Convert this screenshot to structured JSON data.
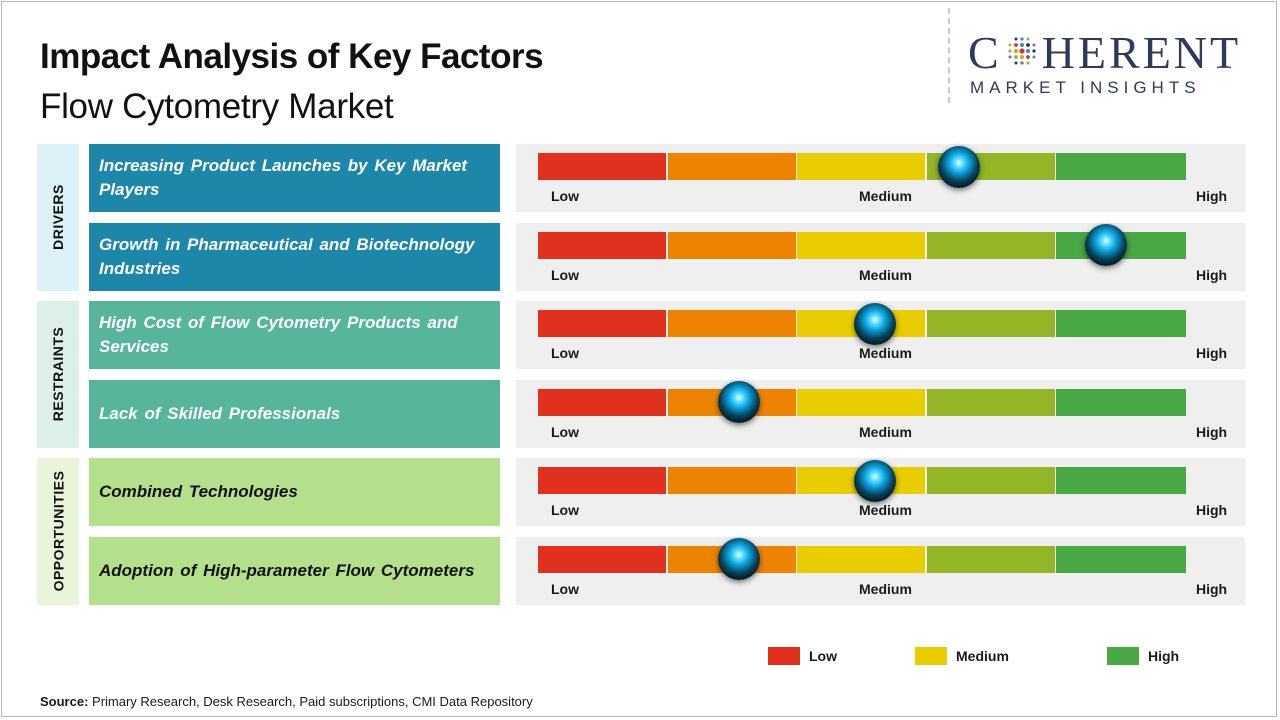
{
  "title": "Impact Analysis of Key Factors",
  "subtitle": "Flow Cytometry Market",
  "logo": {
    "word_left": "C",
    "word_right": "HERENT",
    "tagline": "MARKET INSIGHTS"
  },
  "colors": {
    "low": "#e0301e",
    "low_medium": "#ee8300",
    "medium": "#e9cd00",
    "medium_high": "#93b526",
    "high": "#48a843",
    "drivers": "#1d87a9",
    "restraints": "#56b59a",
    "opportunities": "#b4e08c",
    "drivers_label_bg": "#dcf1f8",
    "restraints_label_bg": "#dcefe9",
    "opportunities_label_bg": "#e8f5db"
  },
  "scale_labels": {
    "low": "Low",
    "medium": "Medium",
    "high": "High"
  },
  "chart_data": {
    "type": "gauge-bars",
    "title": "Impact Analysis of Key Factors",
    "subtitle": "Flow Cytometry Market",
    "scale": [
      "Low",
      "Medium",
      "High"
    ],
    "scale_range": [
      0,
      1
    ],
    "groups": [
      {
        "name": "DRIVERS",
        "factors": [
          {
            "label": "Increasing Product Launches by Key Market Players",
            "impact": 0.65
          },
          {
            "label": "Growth in Pharmaceutical and Biotechnology Industries",
            "impact": 0.877
          }
        ]
      },
      {
        "name": "RESTRAINTS",
        "factors": [
          {
            "label": "High Cost of Flow Cytometry Products and Services",
            "impact": 0.52
          },
          {
            "label": "Lack of Skilled Professionals",
            "impact": 0.31
          }
        ]
      },
      {
        "name": "OPPORTUNITIES",
        "factors": [
          {
            "label": "Combined Technologies",
            "impact": 0.52
          },
          {
            "label": "Adoption of High-parameter Flow Cytometers",
            "impact": 0.31
          }
        ]
      }
    ]
  },
  "legend": [
    {
      "label": "Low",
      "color": "#e0301e"
    },
    {
      "label": "Medium",
      "color": "#e9cd00"
    },
    {
      "label": "High",
      "color": "#48a843"
    }
  ],
  "source": {
    "label": "Source:",
    "text": "Primary Research, Desk Research, Paid subscriptions, CMI Data Repository"
  }
}
